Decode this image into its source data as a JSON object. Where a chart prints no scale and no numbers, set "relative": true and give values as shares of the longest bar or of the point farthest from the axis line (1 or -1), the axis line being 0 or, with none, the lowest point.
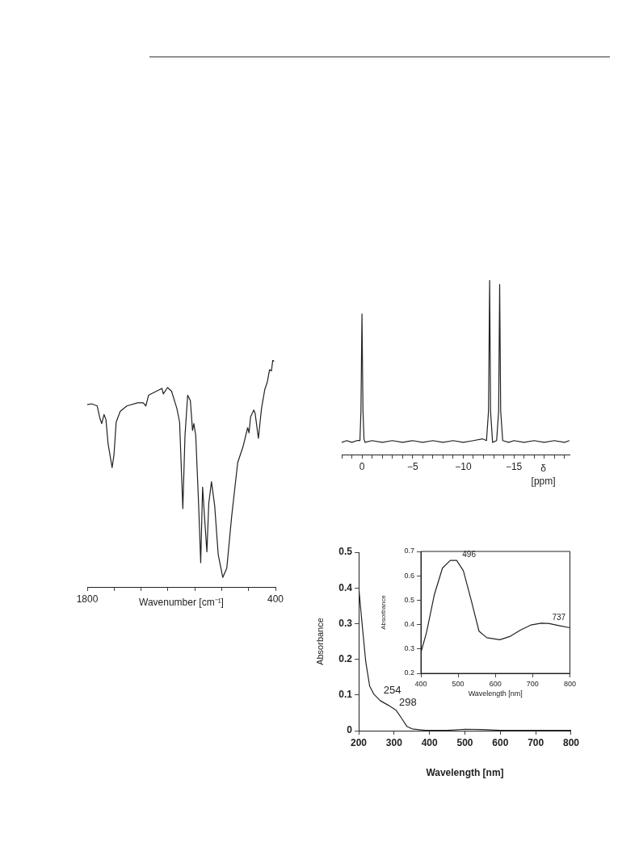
{
  "chart_data": [
    {
      "type": "line",
      "relative": true,
      "xlabel": "Wavenumber [cm⁻¹]",
      "xlim": [
        1800,
        400
      ],
      "xticks": [
        1800,
        {
          "value": 1600,
          "label": null
        },
        {
          "value": 1400,
          "label": null
        },
        {
          "value": 1200,
          "label": null
        },
        {
          "value": 1000,
          "label": null
        },
        {
          "value": 800,
          "label": null
        },
        {
          "value": 600,
          "label": null
        },
        400
      ],
      "series": [
        {
          "color": "#222222",
          "x": [
            1800,
            1766,
            1726,
            1706,
            1692,
            1675,
            1661,
            1645,
            1615,
            1601,
            1585,
            1555,
            1505,
            1424,
            1384,
            1364,
            1344,
            1264,
            1244,
            1234,
            1203,
            1173,
            1133,
            1113,
            1089,
            1073,
            1053,
            1033,
            1017,
            1007,
            993,
            972,
            956,
            942,
            928,
            910,
            896,
            876,
            852,
            826,
            792,
            762,
            726,
            681,
            641,
            607,
            597,
            585,
            561,
            551,
            527,
            504,
            480,
            460,
            444,
            430,
            420,
            410
          ],
          "values": [
            0.804,
            0.807,
            0.798,
            0.744,
            0.72,
            0.76,
            0.738,
            0.631,
            0.526,
            0.583,
            0.726,
            0.774,
            0.798,
            0.812,
            0.812,
            0.798,
            0.845,
            0.869,
            0.875,
            0.851,
            0.879,
            0.863,
            0.786,
            0.726,
            0.345,
            0.667,
            0.845,
            0.821,
            0.69,
            0.72,
            0.667,
            0.369,
            0.107,
            0.44,
            0.31,
            0.155,
            0.369,
            0.464,
            0.357,
            0.143,
            0.042,
            0.083,
            0.31,
            0.548,
            0.619,
            0.702,
            0.679,
            0.75,
            0.78,
            0.764,
            0.655,
            0.786,
            0.869,
            0.905,
            0.958,
            0.952,
            1,
            0.994
          ]
        }
      ]
    },
    {
      "type": "line",
      "relative": true,
      "xlabel": "δ [ppm]",
      "xlim": [
        2,
        -20.5
      ],
      "xticks": [
        {
          "value": 2,
          "label": null
        },
        {
          "value": 1,
          "label": null
        },
        0,
        {
          "value": -1,
          "label": null
        },
        {
          "value": -2,
          "label": null
        },
        {
          "value": -3,
          "label": null
        },
        {
          "value": -4,
          "label": null
        },
        {
          "value": -5,
          "label": "−5"
        },
        {
          "value": -6,
          "label": null
        },
        {
          "value": -7,
          "label": null
        },
        {
          "value": -8,
          "label": null
        },
        {
          "value": -9,
          "label": null
        },
        {
          "value": -10,
          "label": "−10"
        },
        {
          "value": -11,
          "label": null
        },
        {
          "value": -12,
          "label": null
        },
        {
          "value": -13,
          "label": null
        },
        {
          "value": -14,
          "label": null
        },
        {
          "value": -15,
          "label": "−15"
        },
        {
          "value": -16,
          "label": null
        },
        {
          "value": -17,
          "label": null
        },
        {
          "value": -18,
          "label": null
        },
        {
          "value": -19,
          "label": null
        },
        {
          "value": -20,
          "label": null
        }
      ],
      "series": [
        {
          "color": "#222222",
          "x": [
            2,
            1.5,
            1,
            0.5,
            0.2,
            0.1,
            0,
            -0.1,
            -0.2,
            -0.3,
            -1,
            -2,
            -3,
            -4,
            -5,
            -6,
            -7,
            -8,
            -9,
            -10,
            -11,
            -11.9,
            -12.3,
            -12.5,
            -12.61,
            -12.7,
            -12.9,
            -13.3,
            -13.5,
            -13.6,
            -13.7,
            -13.9,
            -14.5,
            -15,
            -16,
            -17,
            -18,
            -19,
            -20,
            -20.5
          ],
          "values": [
            0.07,
            0.08,
            0.07,
            0.08,
            0.08,
            0.25,
            0.806,
            0.25,
            0.09,
            0.07,
            0.08,
            0.07,
            0.08,
            0.07,
            0.08,
            0.07,
            0.08,
            0.07,
            0.08,
            0.07,
            0.08,
            0.09,
            0.08,
            0.25,
            1,
            0.25,
            0.07,
            0.08,
            0.25,
            0.975,
            0.25,
            0.08,
            0.07,
            0.08,
            0.07,
            0.08,
            0.07,
            0.08,
            0.07,
            0.08
          ]
        }
      ]
    },
    {
      "type": "line",
      "xlabel": "Wavelength [nm]",
      "ylabel": "Absorbance",
      "xlim": [
        200,
        800
      ],
      "xticks": [
        200,
        300,
        400,
        500,
        600,
        700,
        800
      ],
      "ylim": [
        0,
        0.5
      ],
      "yticks": [
        0,
        0.1,
        0.2,
        0.3,
        0.4,
        0.5
      ],
      "series": [
        {
          "color": "#222222",
          "x": [
            200,
            209,
            220,
            231,
            243,
            261,
            284,
            306,
            321,
            336,
            351,
            388,
            450,
            500,
            550,
            600,
            700,
            800
          ],
          "values": [
            0.404,
            0.306,
            0.193,
            0.125,
            0.102,
            0.084,
            0.071,
            0.057,
            0.035,
            0.012,
            0.005,
            0.001,
            0.001,
            0.004,
            0.003,
            0.001,
            0.001,
            0.001
          ]
        }
      ],
      "annotations": [
        {
          "text": "254",
          "x": 254,
          "y": 0.094
        },
        {
          "text": "298",
          "x": 298,
          "y": 0.06
        }
      ]
    },
    {
      "type": "line",
      "xlabel": "Wavelength [nm]",
      "ylabel": "Absorbance",
      "xlim": [
        400,
        800
      ],
      "xticks": [
        400,
        500,
        600,
        700,
        800
      ],
      "ylim": [
        0.2,
        0.7
      ],
      "yticks": [
        0.2,
        0.3,
        0.4,
        0.5,
        0.6,
        0.7
      ],
      "series": [
        {
          "color": "#222222",
          "x": [
            400,
            415,
            436,
            458,
            479,
            496,
            514,
            535,
            556,
            577,
            612,
            640,
            668,
            695,
            723,
            737,
            745,
            773,
            800
          ],
          "values": [
            0.285,
            0.367,
            0.522,
            0.632,
            0.663,
            0.663,
            0.621,
            0.5,
            0.373,
            0.346,
            0.338,
            0.352,
            0.378,
            0.398,
            0.406,
            0.405,
            0.404,
            0.395,
            0.387
          ]
        }
      ],
      "annotations": [
        {
          "text": "496",
          "x": 496,
          "y": 0.663
        },
        {
          "text": "737",
          "x": 737,
          "y": 0.405
        }
      ]
    }
  ]
}
